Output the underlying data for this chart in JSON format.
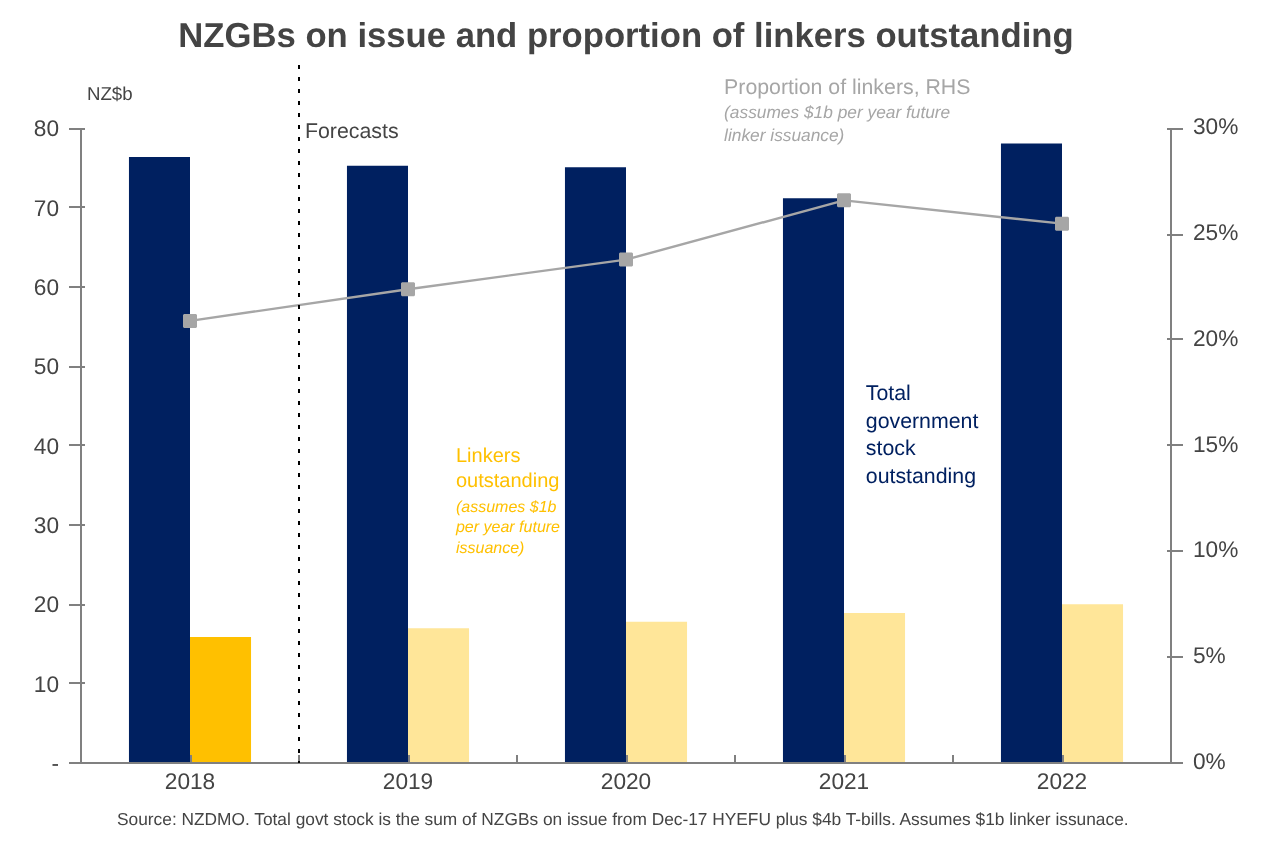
{
  "chart_data": {
    "type": "bar",
    "title": "NZGBs on issue and proportion of linkers outstanding",
    "ylabel": "NZ$b",
    "categories": [
      "2018",
      "2019",
      "2020",
      "2021",
      "2022"
    ],
    "series": [
      {
        "name": "Total government stock outstanding",
        "color": "#002060",
        "values": [
          76.4,
          75.3,
          75.1,
          71.2,
          78.1
        ]
      },
      {
        "name": "Linkers outstanding",
        "colors": [
          "#ffc000",
          "#ffe699",
          "#ffe699",
          "#ffe699",
          "#ffe699"
        ],
        "values": [
          15.9,
          17.0,
          17.8,
          18.9,
          20.0
        ]
      },
      {
        "name": "Proportion of linkers, RHS",
        "type": "line",
        "axis": "y2",
        "color": "#a6a6a6",
        "marker": "square",
        "values": [
          20.9,
          22.4,
          23.8,
          26.6,
          25.5
        ]
      }
    ],
    "ylim": [
      0,
      80
    ],
    "yticks": [
      {
        "value": 0,
        "label": "-"
      },
      10,
      20,
      30,
      40,
      50,
      60,
      70,
      80
    ],
    "y2lim": [
      0,
      30
    ],
    "y2ticks": [
      {
        "value": 0,
        "label": "0%"
      },
      {
        "value": 5,
        "label": "5%"
      },
      {
        "value": 10,
        "label": "10%"
      },
      {
        "value": 15,
        "label": "15%"
      },
      {
        "value": 20,
        "label": "20%"
      },
      {
        "value": 25,
        "label": "25%"
      },
      {
        "value": 30,
        "label": "30%"
      }
    ],
    "annotations": [
      "Source: NZDMO. Total govt stock is the sum of NZGBs on issue from Dec-17 HYEFU plus $4b T-bills.  Assumes $1b linker issunace.",
      "(assumes $1b per year future issuance)",
      "(assumes $1b per year future linker issuance)",
      "Forecasts"
    ],
    "grid": false
  }
}
